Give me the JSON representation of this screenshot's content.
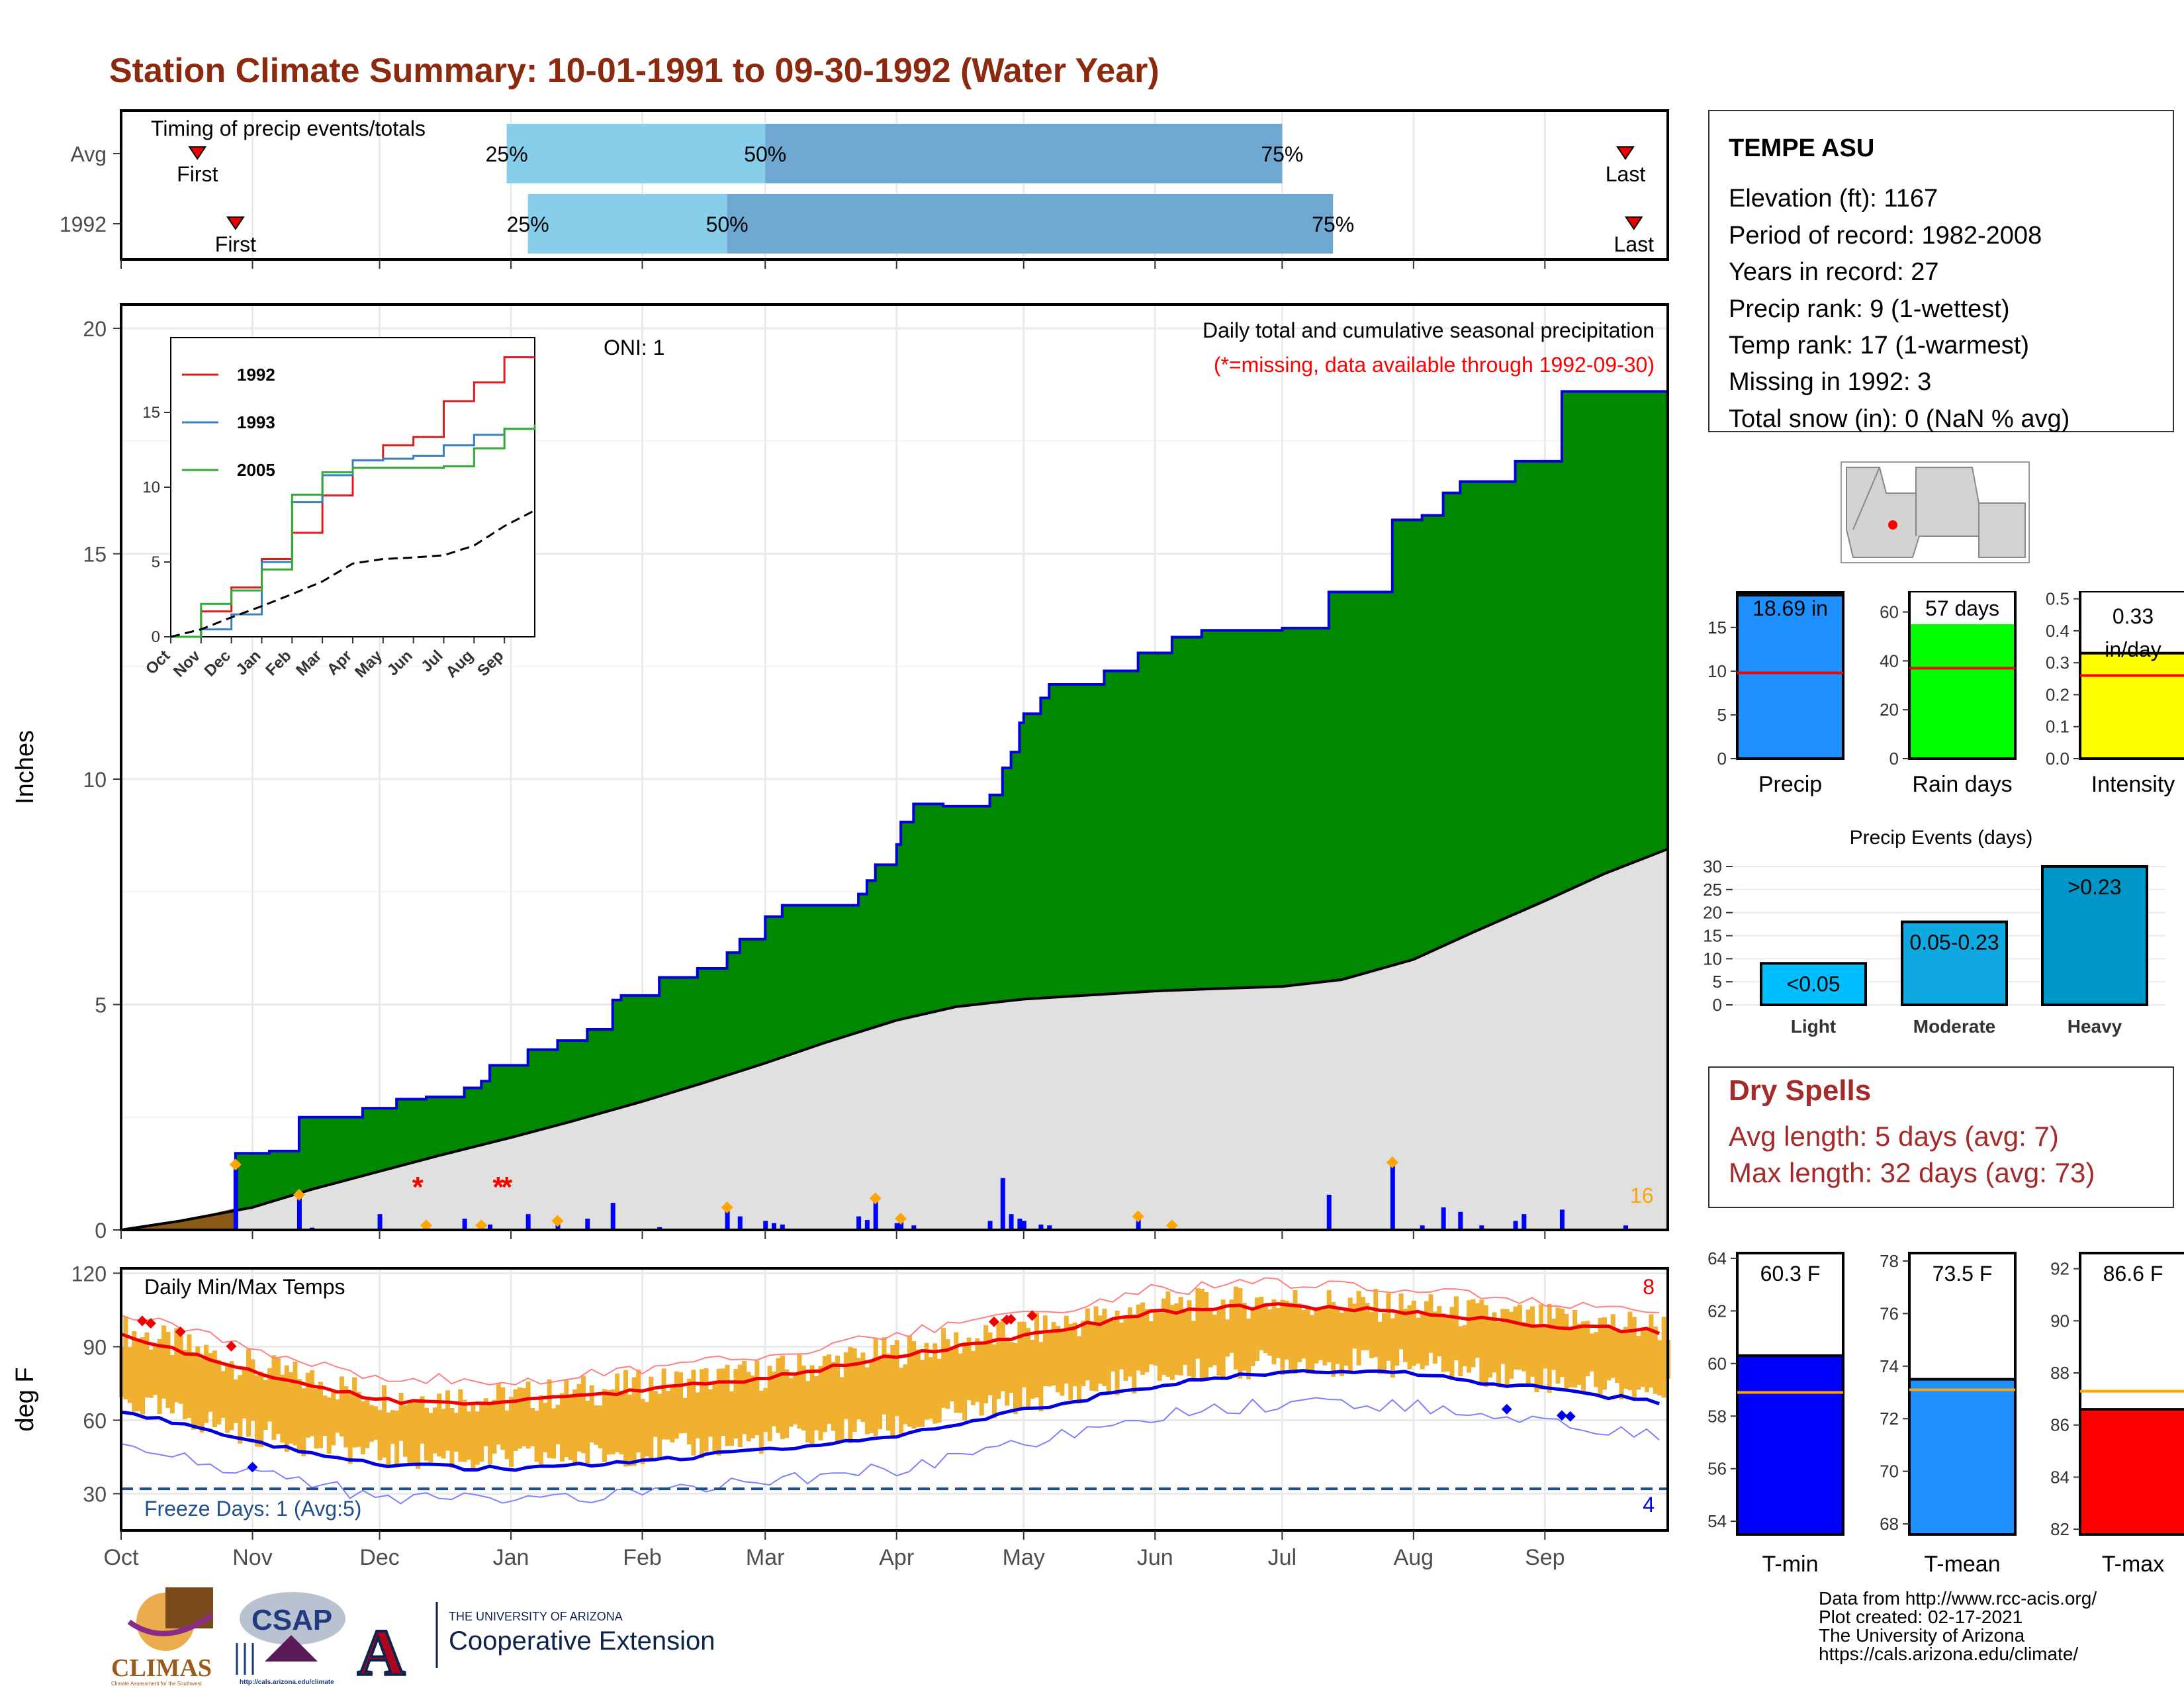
{
  "title": "Station Climate Summary: 10-01-1991 to 09-30-1992 (Water Year)",
  "station": {
    "name": "TEMPE ASU",
    "lines": [
      "Elevation (ft): 1167",
      "Period of record: 1982-2008",
      "Years in record: 27",
      "Precip rank: 9 (1-wettest)",
      "Temp rank: 17 (1-warmest)",
      "Missing in 1992: 3",
      "Total snow (in): 0 (NaN % avg)"
    ]
  },
  "dry_spells": {
    "title": "Dry Spells",
    "lines": [
      "Avg length: 5 days (avg: 7)",
      "Max length: 32 days (avg: 73)"
    ]
  },
  "credits": [
    "Data from http://www.rcc-acis.org/",
    "Plot created: 02-17-2021",
    "The University of Arizona",
    "https://cals.arizona.edu/climate/"
  ],
  "logos": {
    "climas": "CLIMAS",
    "climas_sub": "Climate Assessment for the Southwest",
    "csap": "CSAP",
    "csap_url": "http://cals.arizona.edu/climate",
    "ua_small": "THE UNIVERSITY OF ARIZONA",
    "ua_big": "Cooperative Extension",
    "ua_mark": "A"
  },
  "colors": {
    "title": "#8b2a0e",
    "green": "#008800",
    "blue_line": "#0000dd",
    "gray_fill": "#e0e0e0",
    "brown": "#8b5a16",
    "orange": "#ffa500",
    "tmax_line": "#ee0000",
    "tmin_line": "#0000dd",
    "temp_bar": "#f0b030",
    "light_blue": "#87ceeb",
    "mid_blue": "#6fa8d0"
  },
  "chart_data": [
    {
      "id": "timing",
      "type": "bar",
      "title": "Timing of precip events/totals",
      "rows": [
        {
          "label": "Avg",
          "first": "First",
          "last": "Last",
          "first_date": "1991-10-19",
          "last_date": "1992-09-20",
          "p25_date": "1991-12-31",
          "p50_date": "1992-03-01",
          "p75_date": "1992-07-01",
          "p25": "25%",
          "p50": "50%",
          "p75": "75%"
        },
        {
          "label": "1992",
          "first": "First",
          "last": "Last",
          "first_date": "1991-10-28",
          "last_date": "1992-09-22",
          "p25_date": "1992-01-05",
          "p50_date": "1992-02-21",
          "p75_date": "1992-07-13",
          "p25": "25%",
          "p50": "50%",
          "p75": "75%"
        }
      ]
    },
    {
      "id": "precip",
      "type": "area",
      "title": "Daily total and cumulative seasonal precipitation",
      "subtitle": "(*=missing, data available through 1992-09-30)",
      "annotation": "ONI: 1",
      "ylabel": "Inches",
      "ylim": [
        0,
        20
      ],
      "yticks": [
        "0",
        "5",
        "10",
        "15",
        "20"
      ],
      "corner_count": "16",
      "cumulative_1992": [
        [
          "1991-10-01",
          0
        ],
        [
          "1991-10-27",
          0
        ],
        [
          "1991-10-28",
          1.7
        ],
        [
          "1991-11-05",
          1.75
        ],
        [
          "1991-11-12",
          2.5
        ],
        [
          "1991-11-27",
          2.7
        ],
        [
          "1991-12-05",
          2.9
        ],
        [
          "1991-12-12",
          2.95
        ],
        [
          "1991-12-21",
          3.15
        ],
        [
          "1991-12-25",
          3.3
        ],
        [
          "1991-12-27",
          3.65
        ],
        [
          "1992-01-05",
          4.0
        ],
        [
          "1992-01-12",
          4.2
        ],
        [
          "1992-01-19",
          4.45
        ],
        [
          "1992-01-25",
          5.1
        ],
        [
          "1992-01-27",
          5.2
        ],
        [
          "1992-02-05",
          5.6
        ],
        [
          "1992-02-14",
          5.8
        ],
        [
          "1992-02-21",
          6.15
        ],
        [
          "1992-02-24",
          6.45
        ],
        [
          "1992-03-01",
          6.95
        ],
        [
          "1992-03-05",
          7.2
        ],
        [
          "1992-03-23",
          7.45
        ],
        [
          "1992-03-25",
          7.75
        ],
        [
          "1992-03-27",
          8.1
        ],
        [
          "1992-04-01",
          8.55
        ],
        [
          "1992-04-02",
          9.05
        ],
        [
          "1992-04-05",
          9.45
        ],
        [
          "1992-04-12",
          9.4
        ],
        [
          "1992-04-23",
          9.65
        ],
        [
          "1992-04-26",
          10.25
        ],
        [
          "1992-04-28",
          10.6
        ],
        [
          "1992-04-30",
          11.25
        ],
        [
          "1992-05-01",
          11.45
        ],
        [
          "1992-05-05",
          11.8
        ],
        [
          "1992-05-07",
          12.1
        ],
        [
          "1992-05-20",
          12.4
        ],
        [
          "1992-05-28",
          12.8
        ],
        [
          "1992-06-05",
          13.15
        ],
        [
          "1992-06-12",
          13.3
        ],
        [
          "1992-07-01",
          13.35
        ],
        [
          "1992-07-12",
          14.15
        ],
        [
          "1992-07-27",
          15.75
        ],
        [
          "1992-08-03",
          15.85
        ],
        [
          "1992-08-08",
          16.35
        ],
        [
          "1992-08-12",
          16.6
        ],
        [
          "1992-08-25",
          17.05
        ],
        [
          "1992-09-05",
          18.6
        ],
        [
          "1992-09-30",
          18.69
        ]
      ],
      "cumulative_avg": [
        [
          "1991-10-01",
          0
        ],
        [
          "1991-10-15",
          0.2
        ],
        [
          "1991-11-01",
          0.5
        ],
        [
          "1991-11-15",
          0.9
        ],
        [
          "1991-12-01",
          1.3
        ],
        [
          "1991-12-15",
          1.65
        ],
        [
          "1992-01-01",
          2.05
        ],
        [
          "1992-01-15",
          2.4
        ],
        [
          "1992-02-01",
          2.85
        ],
        [
          "1992-02-15",
          3.25
        ],
        [
          "1992-03-01",
          3.7
        ],
        [
          "1992-03-15",
          4.15
        ],
        [
          "1992-04-01",
          4.65
        ],
        [
          "1992-04-15",
          4.95
        ],
        [
          "1992-05-01",
          5.12
        ],
        [
          "1992-05-15",
          5.2
        ],
        [
          "1992-06-01",
          5.3
        ],
        [
          "1992-06-15",
          5.35
        ],
        [
          "1992-07-01",
          5.4
        ],
        [
          "1992-07-15",
          5.55
        ],
        [
          "1992-08-01",
          6.0
        ],
        [
          "1992-08-15",
          6.6
        ],
        [
          "1992-09-01",
          7.3
        ],
        [
          "1992-09-15",
          7.9
        ],
        [
          "1992-09-30",
          8.45
        ]
      ],
      "daily_1992": [
        [
          "1991-10-28",
          1.45
        ],
        [
          "1991-11-12",
          0.78
        ],
        [
          "1991-11-15",
          0.05
        ],
        [
          "1991-12-01",
          0.35
        ],
        [
          "1991-12-21",
          0.25
        ],
        [
          "1991-12-27",
          0.12
        ],
        [
          "1992-01-05",
          0.35
        ],
        [
          "1992-01-12",
          0.2
        ],
        [
          "1992-01-19",
          0.25
        ],
        [
          "1992-01-25",
          0.6
        ],
        [
          "1992-02-05",
          0.06
        ],
        [
          "1992-02-21",
          0.5
        ],
        [
          "1992-02-24",
          0.3
        ],
        [
          "1992-03-01",
          0.2
        ],
        [
          "1992-03-03",
          0.15
        ],
        [
          "1992-03-05",
          0.12
        ],
        [
          "1992-03-23",
          0.3
        ],
        [
          "1992-03-25",
          0.22
        ],
        [
          "1992-03-27",
          0.7
        ],
        [
          "1992-04-01",
          0.15
        ],
        [
          "1992-04-02",
          0.25
        ],
        [
          "1992-04-05",
          0.1
        ],
        [
          "1992-04-23",
          0.2
        ],
        [
          "1992-04-26",
          1.15
        ],
        [
          "1992-04-28",
          0.35
        ],
        [
          "1992-04-30",
          0.25
        ],
        [
          "1992-05-01",
          0.2
        ],
        [
          "1992-05-05",
          0.12
        ],
        [
          "1992-05-07",
          0.1
        ],
        [
          "1992-05-28",
          0.3
        ],
        [
          "1992-06-05",
          0.1
        ],
        [
          "1992-07-12",
          0.78
        ],
        [
          "1992-07-27",
          1.5
        ],
        [
          "1992-08-03",
          0.1
        ],
        [
          "1992-08-08",
          0.5
        ],
        [
          "1992-08-12",
          0.4
        ],
        [
          "1992-08-17",
          0.1
        ],
        [
          "1992-08-25",
          0.2
        ],
        [
          "1992-08-27",
          0.35
        ],
        [
          "1992-09-05",
          0.45
        ],
        [
          "1992-09-20",
          0.1
        ]
      ],
      "missing_dates": [
        "1991-12-10",
        "1991-12-29",
        "1991-12-31"
      ],
      "record_dates": [
        "1991-10-28",
        "1991-11-12",
        "1991-12-12",
        "1991-12-25",
        "1992-01-12",
        "1992-02-21",
        "1992-03-27",
        "1992-04-02",
        "1992-05-28",
        "1992-06-05",
        "1992-07-27"
      ],
      "inset": {
        "type": "line",
        "yticks": [
          "0",
          "5",
          "10",
          "15"
        ],
        "ylim": [
          0,
          20
        ],
        "months": [
          "Oct",
          "Nov",
          "Dec",
          "Jan",
          "Feb",
          "Mar",
          "Apr",
          "May",
          "Jun",
          "Jul",
          "Aug",
          "Sep"
        ],
        "series": [
          {
            "name": "1992",
            "color": "#dd1c1c",
            "points": [
              [
                0,
                0
              ],
              [
                1,
                1.7
              ],
              [
                2,
                3.3
              ],
              [
                3,
                5.2
              ],
              [
                4,
                6.95
              ],
              [
                5,
                9.45
              ],
              [
                6,
                11.8
              ],
              [
                7,
                12.8
              ],
              [
                8,
                13.35
              ],
              [
                9,
                15.75
              ],
              [
                10,
                17.0
              ],
              [
                11,
                18.69
              ],
              [
                12,
                18.69
              ]
            ]
          },
          {
            "name": "1993",
            "color": "#3a7fbf",
            "points": [
              [
                0,
                0
              ],
              [
                1,
                0.5
              ],
              [
                2,
                1.5
              ],
              [
                3,
                5.0
              ],
              [
                4,
                9.0
              ],
              [
                5,
                10.8
              ],
              [
                6,
                11.8
              ],
              [
                7,
                11.9
              ],
              [
                8,
                12.1
              ],
              [
                9,
                12.8
              ],
              [
                10,
                13.5
              ],
              [
                11,
                13.9
              ],
              [
                12,
                14.0
              ]
            ]
          },
          {
            "name": "2005",
            "color": "#33aa33",
            "points": [
              [
                0,
                0
              ],
              [
                1,
                2.2
              ],
              [
                2,
                3.1
              ],
              [
                3,
                4.5
              ],
              [
                4,
                9.5
              ],
              [
                5,
                11.0
              ],
              [
                6,
                11.3
              ],
              [
                7,
                11.3
              ],
              [
                8,
                11.3
              ],
              [
                9,
                11.4
              ],
              [
                10,
                12.6
              ],
              [
                11,
                13.9
              ],
              [
                12,
                14.2
              ]
            ]
          },
          {
            "name": "",
            "color": "#000000",
            "points": [
              [
                0,
                0
              ],
              [
                1,
                0.5
              ],
              [
                2,
                1.3
              ],
              [
                3,
                2.05
              ],
              [
                4,
                2.85
              ],
              [
                5,
                3.7
              ],
              [
                6,
                4.9
              ],
              [
                7,
                5.2
              ],
              [
                8,
                5.3
              ],
              [
                9,
                5.45
              ],
              [
                10,
                6.1
              ],
              [
                11,
                7.4
              ],
              [
                12,
                8.45
              ]
            ]
          }
        ]
      }
    },
    {
      "id": "temps",
      "type": "bar",
      "title": "Daily Min/Max Temps",
      "ylabel": "deg F",
      "ylim": [
        15,
        122
      ],
      "yticks": [
        "30",
        "60",
        "90",
        "120"
      ],
      "freeze_label": "Freeze Days: 1 (Avg:5)",
      "freeze_line": 32,
      "hot_count": "8",
      "cold_count": "4",
      "months": [
        "Oct",
        "Nov",
        "Dec",
        "Jan",
        "Feb",
        "Mar",
        "Apr",
        "May",
        "Jun",
        "Jul",
        "Aug",
        "Sep"
      ],
      "avg_tmax_monthly": [
        95,
        80,
        68,
        67,
        72,
        77,
        86,
        94,
        104,
        107,
        104,
        99,
        96
      ],
      "avg_tmin_monthly": [
        64,
        51,
        42,
        40,
        43,
        48,
        53,
        64,
        74,
        80,
        79,
        73,
        67
      ],
      "record_high_dates": [
        "1991-10-06",
        "1991-10-08",
        "1991-10-15",
        "1991-10-27",
        "1992-04-24",
        "1992-04-27",
        "1992-04-28",
        "1992-05-03"
      ],
      "record_low_dates": [
        "1991-11-01",
        "1992-08-23",
        "1992-09-05",
        "1992-09-07"
      ]
    },
    {
      "id": "summary_precip",
      "type": "bar",
      "categories": [
        "Precip",
        "Rain days",
        "Intensity"
      ],
      "values": [
        18.69,
        57,
        0.33
      ],
      "averages": [
        9.8,
        37,
        0.26
      ],
      "labels": [
        "18.69 in",
        "57 days",
        "0.33",
        "in/day"
      ],
      "axes": [
        {
          "ylim": [
            0,
            19
          ],
          "yticks": [
            "0",
            "5",
            "10",
            "15"
          ]
        },
        {
          "ylim": [
            0,
            68
          ],
          "yticks": [
            "0",
            "20",
            "40",
            "60"
          ]
        },
        {
          "ylim": [
            0,
            0.52
          ],
          "yticks": [
            "0.0",
            "0.1",
            "0.2",
            "0.3",
            "0.4",
            "0.5"
          ]
        }
      ],
      "colors": [
        "#1e90ff",
        "#00ff00",
        "#ffff00"
      ]
    },
    {
      "id": "events",
      "type": "bar",
      "title": "Precip Events (days)",
      "categories": [
        "Light",
        "Moderate",
        "Heavy"
      ],
      "values": [
        9,
        18,
        30
      ],
      "labels": [
        "<0.05",
        "0.05-0.23",
        ">0.23"
      ],
      "ylim": [
        0,
        31
      ],
      "yticks": [
        "0",
        "5",
        "10",
        "15",
        "20",
        "25",
        "30"
      ]
    },
    {
      "id": "summary_temp",
      "type": "bar",
      "categories": [
        "T-min",
        "T-mean",
        "T-max"
      ],
      "values": [
        60.3,
        73.5,
        86.6
      ],
      "averages": [
        58.9,
        73.1,
        87.3
      ],
      "labels": [
        "60.3 F",
        "73.5 F",
        "86.6 F"
      ],
      "axes": [
        {
          "ylim": [
            53.5,
            64.2
          ],
          "yticks": [
            "54",
            "56",
            "58",
            "60",
            "62",
            "64"
          ]
        },
        {
          "ylim": [
            67.6,
            78.3
          ],
          "yticks": [
            "68",
            "70",
            "72",
            "74",
            "76",
            "78"
          ]
        },
        {
          "ylim": [
            81.8,
            92.6
          ],
          "yticks": [
            "82",
            "84",
            "86",
            "88",
            "90",
            "92"
          ]
        }
      ],
      "colors": [
        "#0000ff",
        "#1e90ff",
        "#ff0000"
      ]
    }
  ]
}
